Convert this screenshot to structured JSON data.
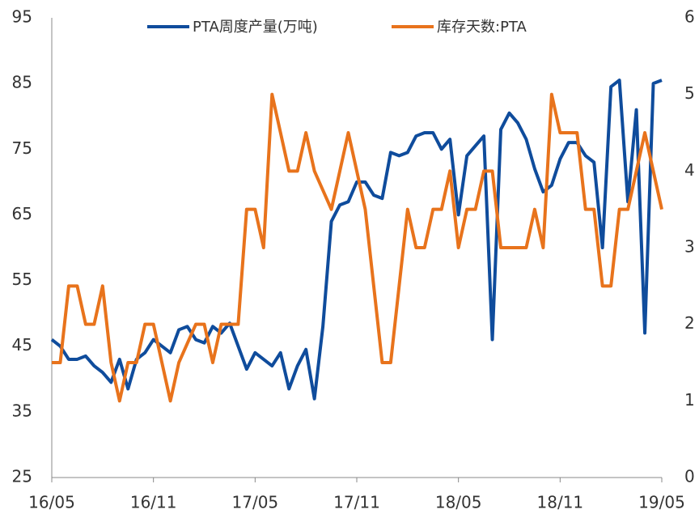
{
  "chart_data": {
    "type": "line",
    "categories": [
      "16/05",
      null,
      null,
      null,
      null,
      null,
      null,
      null,
      null,
      null,
      null,
      null,
      "16/11",
      null,
      null,
      null,
      null,
      null,
      null,
      null,
      null,
      null,
      null,
      null,
      "17/05",
      null,
      null,
      null,
      null,
      null,
      null,
      null,
      null,
      null,
      null,
      null,
      "17/11",
      null,
      null,
      null,
      null,
      null,
      null,
      null,
      null,
      null,
      null,
      null,
      "18/05",
      null,
      null,
      null,
      null,
      null,
      null,
      null,
      null,
      null,
      null,
      null,
      "18/11",
      null,
      null,
      null,
      null,
      null,
      null,
      null,
      null,
      null,
      null,
      null,
      "19/05"
    ],
    "series": [
      {
        "name": "PTA周度产量(万吨)",
        "color": "#0f4c9c",
        "values": [
          46,
          45,
          43,
          43,
          43.5,
          42,
          41,
          39.5,
          43,
          38.5,
          43,
          44,
          46,
          45,
          44,
          47.5,
          48,
          46,
          45.5,
          48,
          47,
          48.5,
          45,
          41.5,
          44,
          43,
          42,
          44,
          38.5,
          42,
          44.5,
          37,
          48,
          64,
          66.5,
          67,
          70,
          70,
          68,
          67.5,
          74.5,
          74,
          74.5,
          77,
          77.5,
          77.5,
          75,
          76.5,
          65,
          74,
          75.5,
          77,
          46,
          78,
          80.5,
          79,
          76.5,
          72,
          68.5,
          69.5,
          73.5,
          76,
          76,
          74,
          73,
          60,
          84.5,
          85.5,
          67,
          81,
          47,
          85,
          85.5
        ]
      },
      {
        "name": "库存天数:PTA",
        "color": "#e8731c",
        "axis": "y2",
        "values": [
          1.5,
          1.5,
          2.5,
          2.5,
          2,
          2,
          2.5,
          1.5,
          1,
          1.5,
          1.5,
          2,
          2,
          1.5,
          1,
          1.5,
          1.75,
          2,
          2,
          1.5,
          2,
          2,
          2,
          3.5,
          3.5,
          3,
          5,
          4.5,
          4,
          4,
          4.5,
          4,
          3.75,
          3.5,
          4,
          4.5,
          4,
          3.5,
          2.5,
          1.5,
          1.5,
          2.5,
          3.5,
          3,
          3,
          3.5,
          3.5,
          4,
          3,
          3.5,
          3.5,
          4,
          4,
          3,
          3,
          3,
          3,
          3.5,
          3,
          5,
          4.5,
          4.5,
          4.5,
          3.5,
          3.5,
          2.5,
          2.5,
          3.5,
          3.5,
          4,
          4.5,
          4,
          3.5
        ]
      }
    ],
    "ylim": [
      25,
      95
    ],
    "yticks": [
      25,
      35,
      45,
      55,
      65,
      75,
      85,
      95
    ],
    "y2lim": [
      0,
      6
    ],
    "y2ticks": [
      0,
      1,
      2,
      3,
      4,
      5,
      6
    ],
    "legend": "top"
  }
}
